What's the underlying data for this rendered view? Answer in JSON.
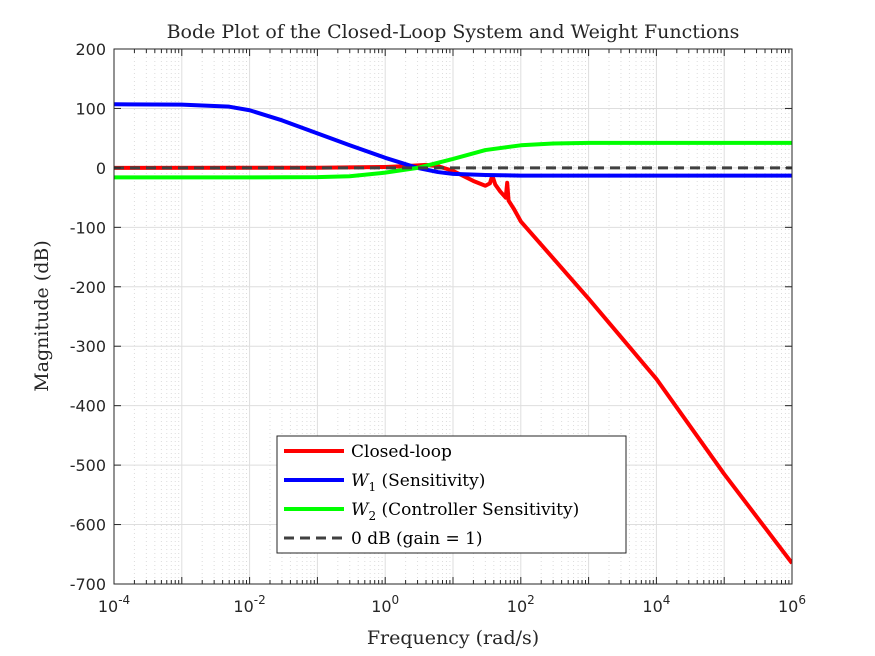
{
  "chart_data": {
    "type": "line",
    "title": "Bode Plot of the Closed-Loop System and Weight Functions",
    "xlabel": "Frequency (rad/s)",
    "ylabel": "Magnitude (dB)",
    "xscale": "log",
    "xlim": [
      0.0001,
      1000000
    ],
    "ylim": [
      -700,
      200
    ],
    "x_ticks": [
      {
        "base": "10",
        "exp": "-4"
      },
      {
        "base": "10",
        "exp": "-2"
      },
      {
        "base": "10",
        "exp": "0"
      },
      {
        "base": "10",
        "exp": "2"
      },
      {
        "base": "10",
        "exp": "4"
      },
      {
        "base": "10",
        "exp": "6"
      }
    ],
    "y_ticks": [
      "200",
      "100",
      "0",
      "-100",
      "-200",
      "-300",
      "-400",
      "-500",
      "-600",
      "-700"
    ],
    "grid": true,
    "legend_position": "bottom-center",
    "series": [
      {
        "name": "Closed-loop",
        "legend_main": "Closed-loop",
        "legend_sub": "",
        "legend_rest": "",
        "color": "#ff0000",
        "dash": "solid",
        "points": [
          [
            0.0001,
            0
          ],
          [
            0.1,
            0.3
          ],
          [
            1,
            1.5
          ],
          [
            2,
            3
          ],
          [
            4,
            5
          ],
          [
            6,
            3
          ],
          [
            10,
            -5
          ],
          [
            20,
            -22
          ],
          [
            30,
            -30
          ],
          [
            35,
            -26
          ],
          [
            38,
            -13
          ],
          [
            42,
            -28
          ],
          [
            50,
            -40
          ],
          [
            60,
            -50
          ],
          [
            63,
            -25
          ],
          [
            66,
            -55
          ],
          [
            80,
            -70
          ],
          [
            100,
            -90
          ],
          [
            1000,
            -220
          ],
          [
            10000,
            -355
          ],
          [
            100000,
            -515
          ],
          [
            1000000,
            -665
          ]
        ]
      },
      {
        "name": "W1 (Sensitivity)",
        "legend_main": "W",
        "legend_sub": "1",
        "legend_rest": " (Sensitivity)",
        "color": "#0000ff",
        "dash": "solid",
        "points": [
          [
            0.0001,
            107
          ],
          [
            0.001,
            106.5
          ],
          [
            0.005,
            103
          ],
          [
            0.01,
            97
          ],
          [
            0.03,
            80
          ],
          [
            0.1,
            58
          ],
          [
            0.3,
            38
          ],
          [
            1,
            17
          ],
          [
            3,
            0
          ],
          [
            6,
            -7
          ],
          [
            10,
            -10
          ],
          [
            30,
            -12
          ],
          [
            100,
            -13
          ],
          [
            1000000,
            -13
          ]
        ]
      },
      {
        "name": "W2 (Controller Sensitivity)",
        "legend_main": "W",
        "legend_sub": "2",
        "legend_rest": " (Controller Sensitivity)",
        "color": "#00ff00",
        "dash": "solid",
        "points": [
          [
            0.0001,
            -16
          ],
          [
            0.01,
            -16
          ],
          [
            0.1,
            -15.5
          ],
          [
            0.3,
            -14
          ],
          [
            1,
            -8
          ],
          [
            3,
            0
          ],
          [
            10,
            15
          ],
          [
            30,
            30
          ],
          [
            100,
            38
          ],
          [
            300,
            41
          ],
          [
            1000,
            42
          ],
          [
            1000000,
            42
          ]
        ]
      },
      {
        "name": "0 dB (gain = 1)",
        "legend_main": "0 dB (gain = 1)",
        "legend_sub": "",
        "legend_rest": "",
        "color": "#404040",
        "dash": "dashed",
        "points": [
          [
            0.0001,
            0
          ],
          [
            1000000,
            0
          ]
        ]
      }
    ]
  }
}
